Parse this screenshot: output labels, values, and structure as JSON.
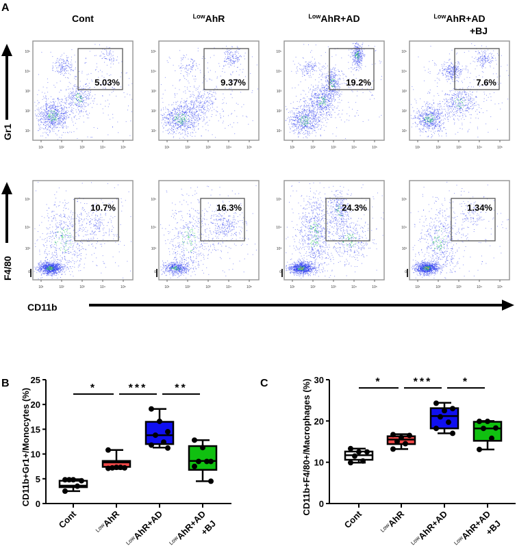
{
  "panel_labels": {
    "a": "A",
    "b": "B",
    "c": "C"
  },
  "flow": {
    "columns": [
      {
        "sup": "",
        "main": "Cont",
        "line2": ""
      },
      {
        "sup": "Low",
        "main": "AhR",
        "line2": ""
      },
      {
        "sup": "Low",
        "main": "AhR+AD",
        "line2": ""
      },
      {
        "sup": "Low",
        "main": "AhR+AD",
        "line2": "+BJ"
      }
    ],
    "row_labels": [
      "Gr1",
      "F4/80"
    ],
    "x_axis_label": "CD11b",
    "gr1_percentages": [
      "5.03%",
      "9.37%",
      "19.2%",
      "7.6%"
    ],
    "f480_percentages": [
      "10.7%",
      "16.3%",
      "24.3%",
      "1.34%"
    ],
    "axis_ticks_gr1": [
      "10¹",
      "10²",
      "10³",
      "10⁴",
      "10⁵"
    ],
    "axis_ticks_f480": [
      "0",
      "10³",
      "10⁴",
      "10⁵"
    ],
    "colors": {
      "dot": "#2233ee",
      "dense": "#22cc55",
      "hot": "#dddd22",
      "gate": "#555555"
    }
  },
  "chart_data": [
    {
      "type": "box",
      "panel": "B",
      "ylabel": "CD11b+Gr1+/Monocytes (%)",
      "ylim": [
        0,
        25
      ],
      "yticks": [
        "0",
        "5",
        "10",
        "15",
        "20",
        "25"
      ],
      "categories": [
        {
          "sup": "",
          "main": "Cont",
          "line2": ""
        },
        {
          "sup": "Low",
          "main": "AhR",
          "line2": ""
        },
        {
          "sup": "Low",
          "main": "AhR+AD",
          "line2": ""
        },
        {
          "sup": "Low",
          "main": "AhR+AD",
          "line2": "+BJ"
        }
      ],
      "colors": [
        "#ffffff",
        "#f04848",
        "#1010f0",
        "#10c010"
      ],
      "boxes": [
        {
          "min": 2.5,
          "q1": 3.3,
          "median": 3.6,
          "q3": 4.6,
          "max": 4.9,
          "points": [
            4.8,
            4.8,
            4.6,
            4.8,
            3.5,
            2.5
          ]
        },
        {
          "min": 7.0,
          "q1": 7.4,
          "median": 8.3,
          "q3": 8.6,
          "max": 10.8,
          "points": [
            7.1,
            7.3,
            7.2,
            7.2,
            7.3,
            10.8
          ]
        },
        {
          "min": 11.3,
          "q1": 12.0,
          "median": 13.8,
          "q3": 16.5,
          "max": 19.1,
          "points": [
            19.1,
            16.6,
            14.5,
            13.8,
            12.4,
            11.8,
            11.2
          ]
        },
        {
          "min": 4.5,
          "q1": 6.8,
          "median": 8.6,
          "q3": 11.6,
          "max": 12.8,
          "points": [
            12.8,
            11.3,
            8.5,
            8.5,
            8.5,
            7.5,
            4.5
          ]
        }
      ],
      "significance": [
        {
          "from": 0,
          "to": 1,
          "label": "*"
        },
        {
          "from": 1,
          "to": 2,
          "label": "***"
        },
        {
          "from": 2,
          "to": 3,
          "label": "**"
        }
      ]
    },
    {
      "type": "box",
      "panel": "C",
      "ylabel": "CD11b+F4/80+/Macrophages (%)",
      "ylim": [
        0,
        30
      ],
      "yticks": [
        "0",
        "10",
        "20",
        "30"
      ],
      "categories": [
        {
          "sup": "",
          "main": "Cont",
          "line2": ""
        },
        {
          "sup": "Low",
          "main": "AhR",
          "line2": ""
        },
        {
          "sup": "Low",
          "main": "AhR+AD",
          "line2": ""
        },
        {
          "sup": "Low",
          "main": "AhR+AD",
          "line2": "+BJ"
        }
      ],
      "colors": [
        "#ffffff",
        "#f04848",
        "#1010f0",
        "#10c010"
      ],
      "boxes": [
        {
          "min": 9.9,
          "q1": 10.6,
          "median": 11.7,
          "q3": 12.6,
          "max": 13.3,
          "points": [
            13.3,
            12.5,
            12.5,
            11.5,
            10.3,
            9.9
          ]
        },
        {
          "min": 13.2,
          "q1": 14.4,
          "median": 15.5,
          "q3": 16.3,
          "max": 16.8,
          "points": [
            16.7,
            16.0,
            16.5,
            15.0,
            14.5,
            13.2
          ]
        },
        {
          "min": 17.0,
          "q1": 18.2,
          "median": 21.2,
          "q3": 23.1,
          "max": 24.4,
          "points": [
            24.3,
            22.5,
            23.0,
            21.0,
            19.7,
            18.2,
            17.0
          ]
        },
        {
          "min": 13.1,
          "q1": 15.2,
          "median": 18.2,
          "q3": 19.8,
          "max": 20.0,
          "points": [
            19.9,
            19.9,
            18.3,
            18.2,
            15.8,
            13.1
          ]
        }
      ],
      "significance": [
        {
          "from": 0,
          "to": 1,
          "label": "*"
        },
        {
          "from": 1,
          "to": 2,
          "label": "***"
        },
        {
          "from": 2,
          "to": 3,
          "label": "*"
        }
      ]
    }
  ]
}
